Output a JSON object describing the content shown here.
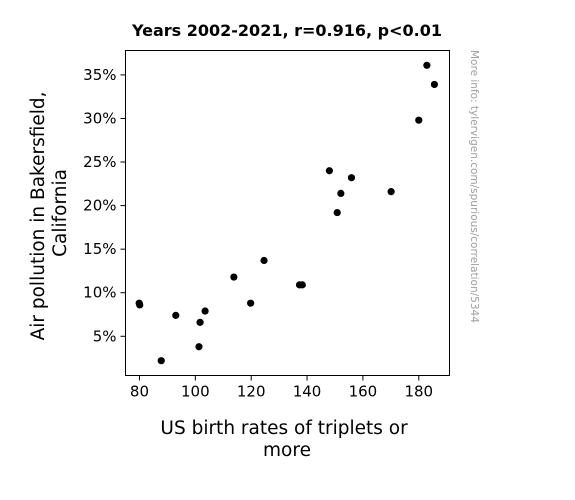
{
  "chart_data": {
    "type": "scatter",
    "title": "Years 2002-2021, r=0.916, p<0.01",
    "xlabel_lines": [
      "US birth rates of triplets or",
      "more"
    ],
    "ylabel_lines": [
      "Air pollution in Bakersfield,",
      "California"
    ],
    "watermark": "More info: tylervigen.com/spurious/correlation/5344",
    "xlim": [
      75,
      191
    ],
    "ylim": [
      0.5,
      37.8
    ],
    "x_ticks": [
      80,
      100,
      120,
      140,
      160,
      180
    ],
    "y_ticks": [
      5,
      10,
      15,
      20,
      25,
      30,
      35
    ],
    "y_tick_labels": [
      "5%",
      "10%",
      "15%",
      "20%",
      "25%",
      "30%",
      "35%"
    ],
    "point_color": "#000000",
    "grid": false,
    "points": [
      {
        "x": 79.9,
        "y": 8.8
      },
      {
        "x": 80.1,
        "y": 8.6
      },
      {
        "x": 87.8,
        "y": 2.2
      },
      {
        "x": 93.0,
        "y": 7.4
      },
      {
        "x": 101.3,
        "y": 3.8
      },
      {
        "x": 101.7,
        "y": 6.6
      },
      {
        "x": 103.5,
        "y": 7.9
      },
      {
        "x": 113.8,
        "y": 11.8
      },
      {
        "x": 119.8,
        "y": 8.8
      },
      {
        "x": 124.6,
        "y": 13.7
      },
      {
        "x": 137.3,
        "y": 10.9
      },
      {
        "x": 138.3,
        "y": 10.9
      },
      {
        "x": 148.0,
        "y": 24.0
      },
      {
        "x": 150.8,
        "y": 19.2
      },
      {
        "x": 152.1,
        "y": 21.4
      },
      {
        "x": 155.9,
        "y": 23.2
      },
      {
        "x": 170.1,
        "y": 21.6
      },
      {
        "x": 180.0,
        "y": 29.8
      },
      {
        "x": 182.9,
        "y": 36.1
      },
      {
        "x": 185.6,
        "y": 33.9
      }
    ]
  }
}
